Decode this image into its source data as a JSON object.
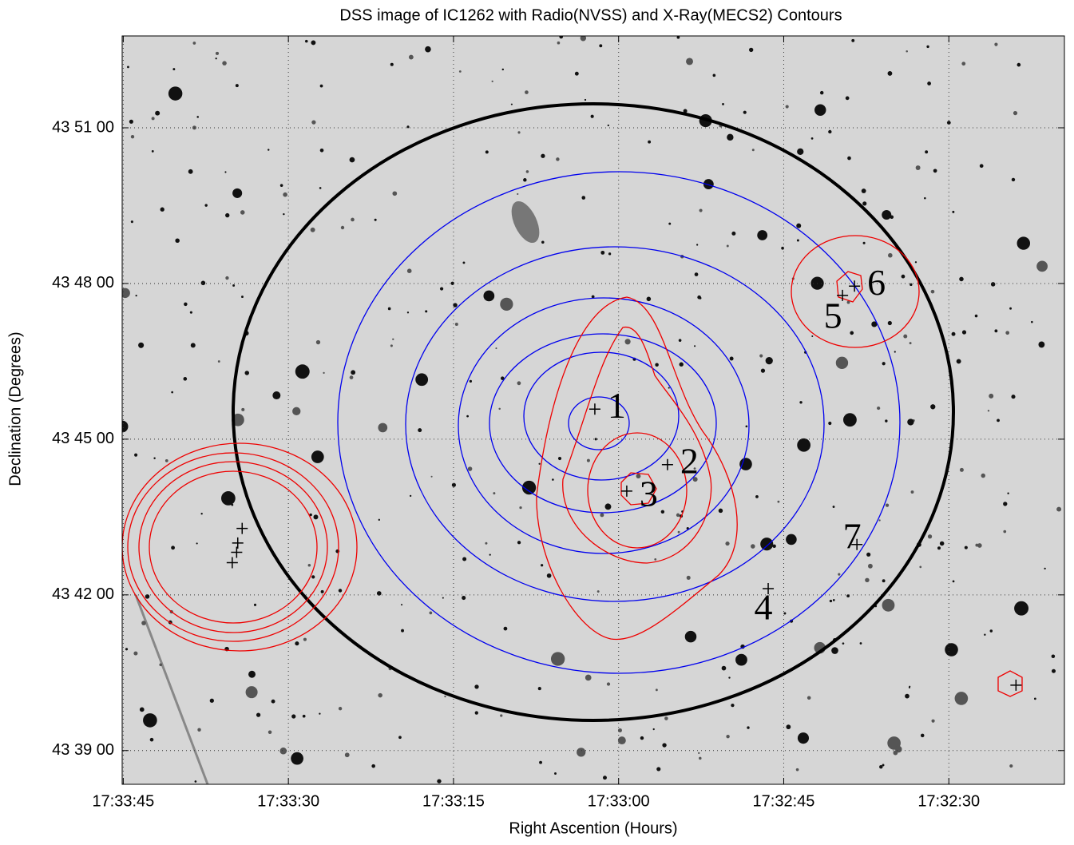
{
  "chart_data": {
    "type": "sky-image",
    "title": "DSS image of IC1262 with Radio(NVSS) and X-Ray(MECS2) Contours",
    "xlabel": "Right Ascention (Hours)",
    "ylabel": "Declination (Degrees)",
    "xlim": [
      105.1,
      19.5
    ],
    "ylim": [
      38.35,
      52.77
    ],
    "xticks": [
      {
        "value": 105,
        "label": "17:33:45"
      },
      {
        "value": 90,
        "label": "17:33:30"
      },
      {
        "value": 75,
        "label": "17:33:15"
      },
      {
        "value": 60,
        "label": "17:33:00"
      },
      {
        "value": 45,
        "label": "17:32:45"
      },
      {
        "value": 30,
        "label": "17:32:30"
      }
    ],
    "yticks": [
      {
        "value": 51,
        "label": "43 51 00"
      },
      {
        "value": 48,
        "label": "43 48 00"
      },
      {
        "value": 45,
        "label": "43 45 00"
      },
      {
        "value": 42,
        "label": "43 42 00"
      },
      {
        "value": 39,
        "label": "43 39 00"
      }
    ],
    "grid": true,
    "sources": {
      "labels": [
        "1",
        "2",
        "3",
        "4",
        "5",
        "6",
        "7",
        null,
        null,
        null,
        null,
        null
      ],
      "x": [
        62.16,
        55.56,
        59.26,
        46.41,
        39.66,
        38.57,
        38.35,
        94.2,
        94.6,
        94.7,
        95.1,
        23.9
      ],
      "y": [
        45.58,
        44.51,
        44.0,
        42.12,
        47.77,
        47.95,
        42.97,
        43.28,
        43.0,
        42.82,
        42.62,
        40.26
      ]
    }
  }
}
